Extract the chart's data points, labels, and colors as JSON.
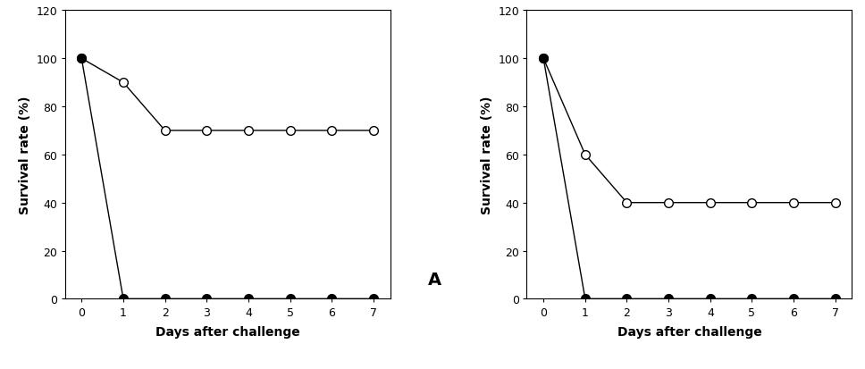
{
  "days": [
    0,
    1,
    2,
    3,
    4,
    5,
    6,
    7
  ],
  "left_open": [
    100,
    90,
    70,
    70,
    70,
    70,
    70,
    70
  ],
  "left_filled": [
    100,
    0,
    0,
    0,
    0,
    0,
    0,
    0
  ],
  "right_open": [
    100,
    60,
    40,
    40,
    40,
    40,
    40,
    40
  ],
  "right_filled": [
    100,
    0,
    0,
    0,
    0,
    0,
    0,
    0
  ],
  "ylabel": "Survival rate (%)",
  "xlabel": "Days after challenge",
  "ylim": [
    0,
    120
  ],
  "yticks": [
    0,
    20,
    40,
    60,
    80,
    100,
    120
  ],
  "xticks": [
    0,
    1,
    2,
    3,
    4,
    5,
    6,
    7
  ],
  "label_A": "A",
  "line_color": "#000000",
  "bg_color": "#ffffff",
  "marker_size": 7,
  "line_width": 1.0
}
